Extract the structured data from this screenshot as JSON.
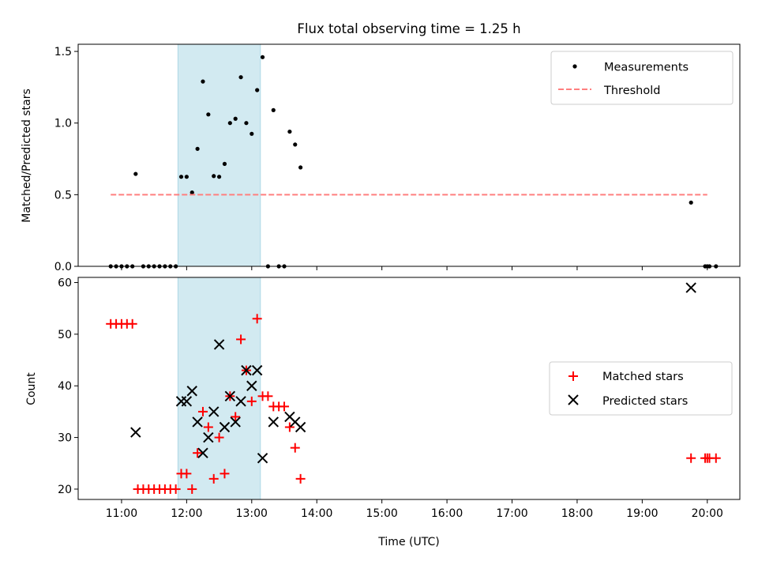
{
  "chart_data": [
    {
      "type": "scatter",
      "title": "Flux total observing time = 1.25 h",
      "ylabel": "Matched/Predicted stars",
      "xlabel": "",
      "xlim": [
        "10:20",
        "20:30"
      ],
      "ylim": [
        0,
        1.55
      ],
      "yticks": [
        0.0,
        0.5,
        1.0,
        1.5
      ],
      "ytick_labels": [
        "0.0",
        "0.5",
        "1.0",
        "1.5"
      ],
      "shaded_span": {
        "start": "11:52",
        "end": "13:08",
        "color": "#add8e6"
      },
      "legend_position": "top-right",
      "series": [
        {
          "name": "Measurements",
          "marker": "dot",
          "color": "#000000",
          "points": [
            [
              "10:50",
              0
            ],
            [
              "10:55",
              0
            ],
            [
              "11:00",
              0
            ],
            [
              "11:05",
              0
            ],
            [
              "11:10",
              0
            ],
            [
              "11:13",
              0.645
            ],
            [
              "11:20",
              0
            ],
            [
              "11:25",
              0
            ],
            [
              "11:30",
              0
            ],
            [
              "11:35",
              0
            ],
            [
              "11:40",
              0
            ],
            [
              "11:45",
              0
            ],
            [
              "11:50",
              0
            ],
            [
              "11:55",
              0.625
            ],
            [
              "12:00",
              0.625
            ],
            [
              "12:05",
              0.515
            ],
            [
              "12:10",
              0.82
            ],
            [
              "12:15",
              1.29
            ],
            [
              "12:20",
              1.06
            ],
            [
              "12:25",
              0.63
            ],
            [
              "12:30",
              0.625
            ],
            [
              "12:35",
              0.715
            ],
            [
              "12:40",
              1.0
            ],
            [
              "12:45",
              1.03
            ],
            [
              "12:50",
              1.32
            ],
            [
              "12:55",
              1.0
            ],
            [
              "13:00",
              0.925
            ],
            [
              "13:05",
              1.23
            ],
            [
              "13:10",
              1.46
            ],
            [
              "13:15",
              0
            ],
            [
              "13:20",
              1.09
            ],
            [
              "13:25",
              0
            ],
            [
              "13:30",
              0
            ],
            [
              "13:35",
              0.94
            ],
            [
              "13:40",
              0.85
            ],
            [
              "13:45",
              0.69
            ],
            [
              "19:45",
              0.445
            ],
            [
              "19:58",
              0
            ],
            [
              "20:00",
              0
            ],
            [
              "20:02",
              0
            ],
            [
              "20:08",
              0
            ]
          ]
        },
        {
          "name": "Threshold",
          "marker": "dashed-line",
          "color": "#ff7f7f",
          "points": [
            [
              "10:50",
              0.5
            ],
            [
              "20:00",
              0.5
            ]
          ]
        }
      ]
    },
    {
      "type": "scatter",
      "title": "",
      "ylabel": "Count",
      "xlabel": "Time (UTC)",
      "xlim": [
        "10:20",
        "20:30"
      ],
      "ylim": [
        18,
        61
      ],
      "yticks": [
        20,
        30,
        40,
        50,
        60
      ],
      "xticks": [
        "11:00",
        "12:00",
        "13:00",
        "14:00",
        "15:00",
        "16:00",
        "17:00",
        "18:00",
        "19:00",
        "20:00"
      ],
      "shaded_span": {
        "start": "11:52",
        "end": "13:08",
        "color": "#add8e6"
      },
      "legend_position": "center-right",
      "series": [
        {
          "name": "Matched stars",
          "marker": "plus",
          "color": "#ff0000",
          "points": [
            [
              "10:50",
              52
            ],
            [
              "10:55",
              52
            ],
            [
              "11:00",
              52
            ],
            [
              "11:05",
              52
            ],
            [
              "11:10",
              52
            ],
            [
              "11:15",
              20
            ],
            [
              "11:20",
              20
            ],
            [
              "11:25",
              20
            ],
            [
              "11:30",
              20
            ],
            [
              "11:35",
              20
            ],
            [
              "11:40",
              20
            ],
            [
              "11:45",
              20
            ],
            [
              "11:50",
              20
            ],
            [
              "11:55",
              23
            ],
            [
              "12:00",
              23
            ],
            [
              "12:05",
              20
            ],
            [
              "12:10",
              27
            ],
            [
              "12:15",
              35
            ],
            [
              "12:20",
              32
            ],
            [
              "12:25",
              22
            ],
            [
              "12:30",
              30
            ],
            [
              "12:35",
              23
            ],
            [
              "12:40",
              38
            ],
            [
              "12:45",
              34
            ],
            [
              "12:50",
              49
            ],
            [
              "12:55",
              43
            ],
            [
              "13:00",
              37
            ],
            [
              "13:05",
              53
            ],
            [
              "13:10",
              38
            ],
            [
              "13:15",
              38
            ],
            [
              "13:20",
              36
            ],
            [
              "13:25",
              36
            ],
            [
              "13:30",
              36
            ],
            [
              "13:35",
              32
            ],
            [
              "13:40",
              28
            ],
            [
              "13:45",
              22
            ],
            [
              "19:45",
              26
            ],
            [
              "19:58",
              26
            ],
            [
              "20:00",
              26
            ],
            [
              "20:02",
              26
            ],
            [
              "20:08",
              26
            ]
          ]
        },
        {
          "name": "Predicted stars",
          "marker": "x",
          "color": "#000000",
          "points": [
            [
              "11:13",
              31
            ],
            [
              "11:55",
              37
            ],
            [
              "12:00",
              37
            ],
            [
              "12:05",
              39
            ],
            [
              "12:10",
              33
            ],
            [
              "12:15",
              27
            ],
            [
              "12:20",
              30
            ],
            [
              "12:25",
              35
            ],
            [
              "12:30",
              48
            ],
            [
              "12:35",
              32
            ],
            [
              "12:40",
              38
            ],
            [
              "12:45",
              33
            ],
            [
              "12:50",
              37
            ],
            [
              "12:55",
              43
            ],
            [
              "13:00",
              40
            ],
            [
              "13:05",
              43
            ],
            [
              "13:10",
              26
            ],
            [
              "13:20",
              33
            ],
            [
              "13:35",
              34
            ],
            [
              "13:40",
              33
            ],
            [
              "13:45",
              32
            ],
            [
              "19:45",
              59
            ]
          ]
        }
      ]
    }
  ]
}
